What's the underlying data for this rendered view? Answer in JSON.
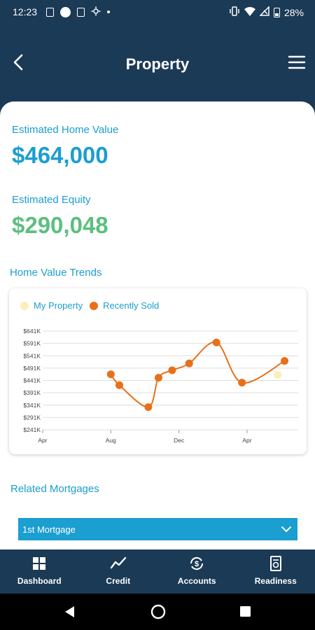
{
  "status_bar": {
    "time": "12:23",
    "battery": "28%"
  },
  "header": {
    "title": "Property"
  },
  "property": {
    "home_value_label": "Estimated Home Value",
    "home_value": "$464,000",
    "equity_label": "Estimated Equity",
    "equity": "$290,048"
  },
  "trends": {
    "title": "Home Value Trends",
    "legend": [
      {
        "label": "My Property",
        "color": "#fbeeb9"
      },
      {
        "label": "Recently Sold",
        "color": "#e8701a"
      }
    ]
  },
  "chart_data": {
    "type": "line",
    "y_ticks": [
      "$241K",
      "$291K",
      "$341K",
      "$391K",
      "$441K",
      "$491K",
      "$541K",
      "$591K",
      "$641K"
    ],
    "x_ticks": [
      "Apr",
      "Aug",
      "Dec",
      "Apr"
    ],
    "ylim": [
      241,
      641
    ],
    "xlim": [
      0,
      15
    ],
    "grid": true,
    "series": [
      {
        "name": "Recently Sold",
        "color": "#e8701a",
        "x": [
          4,
          4.5,
          6.2,
          6.8,
          7.6,
          8.6,
          10.2,
          11.7,
          14.2
        ],
        "y": [
          466,
          422,
          333,
          452,
          482,
          510,
          595,
          432,
          520
        ]
      },
      {
        "name": "My Property",
        "color": "#fbeeb9",
        "x": [
          13.8
        ],
        "y": [
          464
        ]
      }
    ]
  },
  "mortgages": {
    "title": "Related Mortgages",
    "selected": "1st Mortgage"
  },
  "bottom_nav": [
    {
      "label": "Dashboard",
      "icon": "dashboard-icon"
    },
    {
      "label": "Credit",
      "icon": "credit-trend-icon"
    },
    {
      "label": "Accounts",
      "icon": "accounts-dollar-icon"
    },
    {
      "label": "Readiness",
      "icon": "readiness-document-icon"
    }
  ]
}
